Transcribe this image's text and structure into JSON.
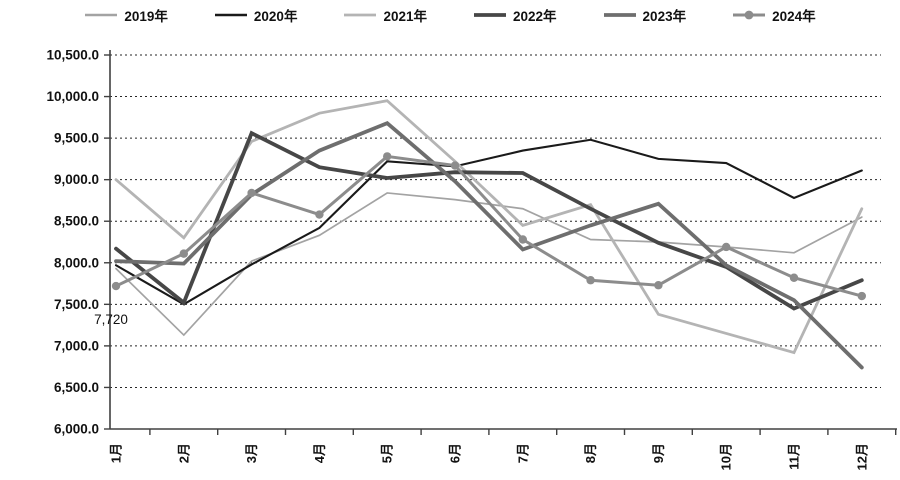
{
  "chart_data": {
    "type": "line",
    "title": "",
    "xlabel": "",
    "ylabel": "",
    "x": [
      "1月",
      "2月",
      "3月",
      "4月",
      "5月",
      "6月",
      "7月",
      "8月",
      "9月",
      "10月",
      "11月",
      "12月"
    ],
    "ylim": [
      6000,
      10500
    ],
    "ytick_step": 500,
    "y_tick_labels": [
      "10,500.0",
      "10,000.0",
      "9,500.0",
      "9,000.0",
      "8,500.0",
      "8,000.0",
      "7,500.0",
      "7,000.0",
      "6,500.0",
      "6,000.0"
    ],
    "grid": "horizontal-dashed",
    "legend_position": "top",
    "series": [
      {
        "name": "2019年",
        "color": "#a3a3a3",
        "width": 1.7,
        "marker": false,
        "values": [
          7930,
          7130,
          8020,
          8330,
          8840,
          8760,
          8650,
          8280,
          8250,
          8190,
          8120,
          8550
        ]
      },
      {
        "name": "2020年",
        "color": "#1a1a1a",
        "width": 2.1,
        "marker": false,
        "values": [
          7970,
          7500,
          7980,
          8420,
          9220,
          9160,
          9350,
          9480,
          9250,
          9200,
          8780,
          9110
        ]
      },
      {
        "name": "2021年",
        "color": "#b4b4b4",
        "width": 2.8,
        "marker": false,
        "values": [
          9000,
          8300,
          9460,
          9800,
          9950,
          9220,
          8450,
          8700,
          7380,
          7150,
          6920,
          8650
        ]
      },
      {
        "name": "2022年",
        "color": "#474747",
        "width": 3.8,
        "marker": false,
        "values": [
          8170,
          7520,
          9560,
          9150,
          9020,
          9090,
          9080,
          8650,
          8240,
          7950,
          7450,
          7790
        ]
      },
      {
        "name": "2023年",
        "color": "#6e6e6e",
        "width": 3.8,
        "marker": false,
        "values": [
          8020,
          7990,
          8820,
          9350,
          9680,
          8980,
          8160,
          8450,
          8710,
          7970,
          7550,
          6740
        ]
      },
      {
        "name": "2024年",
        "color": "#8c8c8c",
        "width": 3.0,
        "marker": true,
        "values": [
          7720,
          8110,
          8840,
          8580,
          9280,
          9170,
          8280,
          7790,
          7730,
          8190,
          7820,
          7600
        ]
      }
    ],
    "annotation": {
      "text": "7,720",
      "series": "2024年",
      "month_index": 0
    }
  }
}
